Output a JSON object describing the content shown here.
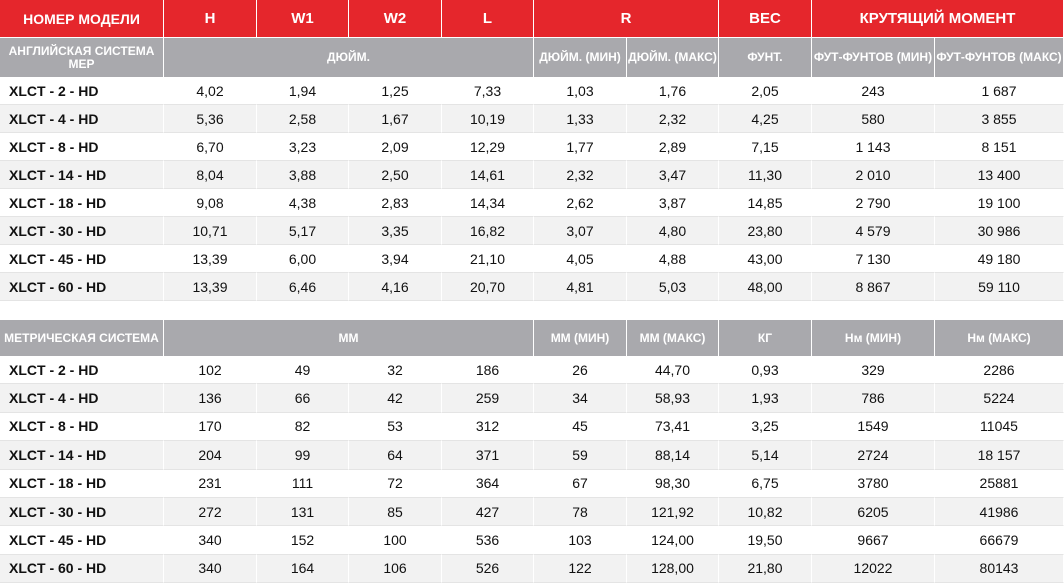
{
  "header": [
    "НОМЕР МОДЕЛИ",
    "H",
    "W1",
    "W2",
    "L",
    "R",
    "ВЕС",
    "КРУТЯЩИЙ МОМЕНТ"
  ],
  "imperial": {
    "label": "АНГЛИЙСКАЯ СИСТЕМА МЕР",
    "units_inch": "ДЮЙМ.",
    "r_min": "ДЮЙМ. (МИН)",
    "r_max": "ДЮЙМ. (МАКС)",
    "weight_unit": "ФУНТ.",
    "torque_min": "ФУТ-ФУНТОВ (МИН)",
    "torque_max": "ФУТ-ФУНТОВ (МАКС)",
    "rows": [
      [
        "XLCT - 2 - HD",
        "4,02",
        "1,94",
        "1,25",
        "7,33",
        "1,03",
        "1,76",
        "2,05",
        "243",
        "1 687"
      ],
      [
        "XLCT - 4 - HD",
        "5,36",
        "2,58",
        "1,67",
        "10,19",
        "1,33",
        "2,32",
        "4,25",
        "580",
        "3 855"
      ],
      [
        "XLCT - 8 - HD",
        "6,70",
        "3,23",
        "2,09",
        "12,29",
        "1,77",
        "2,89",
        "7,15",
        "1 143",
        "8 151"
      ],
      [
        "XLCT - 14 - HD",
        "8,04",
        "3,88",
        "2,50",
        "14,61",
        "2,32",
        "3,47",
        "11,30",
        "2 010",
        "13 400"
      ],
      [
        "XLCT - 18 - HD",
        "9,08",
        "4,38",
        "2,83",
        "14,34",
        "2,62",
        "3,87",
        "14,85",
        "2 790",
        "19 100"
      ],
      [
        "XLCT - 30 - HD",
        "10,71",
        "5,17",
        "3,35",
        "16,82",
        "3,07",
        "4,80",
        "23,80",
        "4 579",
        "30 986"
      ],
      [
        "XLCT - 45 - HD",
        "13,39",
        "6,00",
        "3,94",
        "21,10",
        "4,05",
        "4,88",
        "43,00",
        "7 130",
        "49 180"
      ],
      [
        "XLCT - 60 - HD",
        "13,39",
        "6,46",
        "4,16",
        "20,70",
        "4,81",
        "5,03",
        "48,00",
        "8 867",
        "59 110"
      ]
    ]
  },
  "metric": {
    "label": "МЕТРИЧЕСКАЯ СИСТЕМА",
    "units_mm": "ММ",
    "r_min": "ММ (МИН)",
    "r_max": "ММ (МАКС)",
    "weight_unit": "КГ",
    "torque_min": "Нм (МИН)",
    "torque_max": "Нм (МАКС)",
    "rows": [
      [
        "XLCT - 2 - HD",
        "102",
        "49",
        "32",
        "186",
        "26",
        "44,70",
        "0,93",
        "329",
        "2286"
      ],
      [
        "XLCT - 4 - HD",
        "136",
        "66",
        "42",
        "259",
        "34",
        "58,93",
        "1,93",
        "786",
        "5224"
      ],
      [
        "XLCT - 8 - HD",
        "170",
        "82",
        "53",
        "312",
        "45",
        "73,41",
        "3,25",
        "1549",
        "11045"
      ],
      [
        "XLCT - 14 - HD",
        "204",
        "99",
        "64",
        "371",
        "59",
        "88,14",
        "5,14",
        "2724",
        "18 157"
      ],
      [
        "XLCT - 18 - HD",
        "231",
        "111",
        "72",
        "364",
        "67",
        "98,30",
        "6,75",
        "3780",
        "25881"
      ],
      [
        "XLCT - 30 - HD",
        "272",
        "131",
        "85",
        "427",
        "78",
        "121,92",
        "10,82",
        "6205",
        "41986"
      ],
      [
        "XLCT - 45 - HD",
        "340",
        "152",
        "100",
        "536",
        "103",
        "124,00",
        "19,50",
        "9667",
        "66679"
      ],
      [
        "XLCT - 60 - HD",
        "340",
        "164",
        "106",
        "526",
        "122",
        "128,00",
        "21,80",
        "12022",
        "80143"
      ]
    ]
  }
}
